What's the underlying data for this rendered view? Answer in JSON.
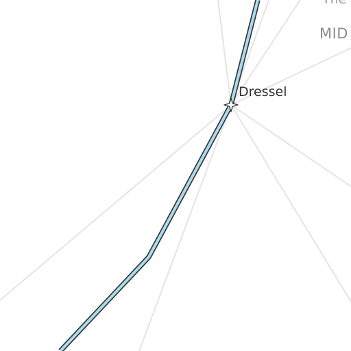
{
  "map": {
    "colors": {
      "background": "#ffffff",
      "road": "#e4e4e4",
      "route_fill": "#a9dcee",
      "route_casing": "#3a3a3a",
      "stop_marker": "#ffffff"
    },
    "route": {
      "stop_name": "Dressel",
      "marker_icon": "star-icon"
    },
    "place_labels": {
      "primary": "MID",
      "secondary": "The"
    }
  }
}
